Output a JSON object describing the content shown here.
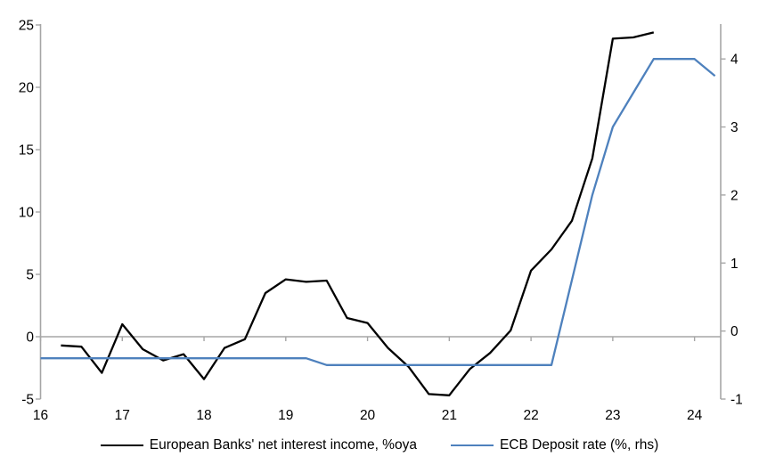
{
  "chart_data": {
    "type": "line",
    "title": "",
    "frequency": "quarterly",
    "grid": "horizontal zero line only",
    "legend_position": "bottom",
    "x_axis": {
      "tick_values": [
        16,
        17,
        18,
        19,
        20,
        21,
        22,
        23,
        24
      ],
      "tick_labels": [
        "16",
        "17",
        "18",
        "19",
        "20",
        "21",
        "22",
        "23",
        "24"
      ],
      "xlim": [
        16,
        24.32
      ]
    },
    "left_axis": {
      "tick_values": [
        -5,
        0,
        5,
        10,
        15,
        20,
        25
      ],
      "ylim": [
        -5,
        25
      ]
    },
    "right_axis": {
      "tick_values": [
        -1,
        0,
        1,
        2,
        3,
        4
      ],
      "ylim": [
        -1,
        4.5
      ]
    },
    "series": [
      {
        "name": "European Banks' net interest income, %oya",
        "axis": "left",
        "color": "#000000",
        "x_start": 16.25,
        "x_step": 0.25,
        "values": [
          -0.7,
          -0.8,
          -2.9,
          1.0,
          -1.0,
          -1.9,
          -1.4,
          -3.4,
          -0.9,
          -0.2,
          3.5,
          4.6,
          4.4,
          4.5,
          1.5,
          1.1,
          -0.9,
          -2.4,
          -4.6,
          -4.7,
          -2.6,
          -1.3,
          0.5,
          5.3,
          7.0,
          9.3,
          14.3,
          23.9,
          24.0,
          24.4
        ]
      },
      {
        "name": "ECB Deposit rate (%, rhs)",
        "axis": "right",
        "color": "#4e81bd",
        "x_start": 16.0,
        "x_step": 0.25,
        "values": [
          -0.4,
          -0.4,
          -0.4,
          -0.4,
          -0.4,
          -0.4,
          -0.4,
          -0.4,
          -0.4,
          -0.4,
          -0.4,
          -0.4,
          -0.4,
          -0.4,
          -0.5,
          -0.5,
          -0.5,
          -0.5,
          -0.5,
          -0.5,
          -0.5,
          -0.5,
          -0.5,
          -0.5,
          -0.5,
          -0.5,
          0.75,
          2.0,
          3.0,
          3.5,
          4.0,
          4.0,
          4.0,
          3.75
        ]
      }
    ]
  },
  "colors": {
    "background": "#ffffff",
    "axis_gray": "#a6a6a6",
    "accent_blue": "#4e81bd",
    "text": "#000000"
  }
}
